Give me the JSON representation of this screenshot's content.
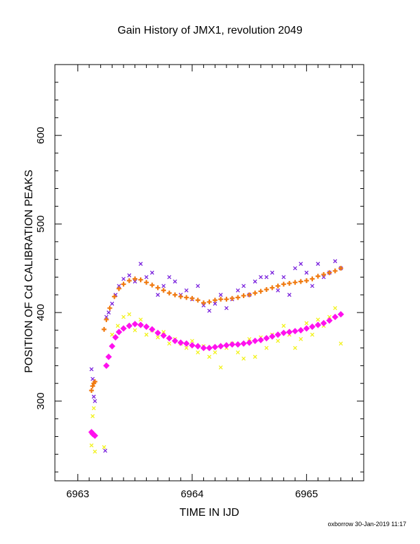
{
  "footer": "oxborrow 30-Jan-2019 11:17",
  "chart_data": {
    "type": "scatter",
    "title": "Gain History of JMX1, revolution 2049",
    "xlabel": "TIME IN IJD",
    "ylabel": "POSITION OF Cd CALIBRATION PEAKS",
    "xlim": [
      6962.8,
      6965.5
    ],
    "ylim": [
      210,
      680
    ],
    "xticks": [
      6963,
      6964,
      6965
    ],
    "yticks": [
      300,
      400,
      500,
      600
    ],
    "grid": false,
    "colors": {
      "purple": "#7a22dd",
      "orange": "#f07a10",
      "yellow": "#f2f21a",
      "magenta": "#ff11ee"
    },
    "series": [
      {
        "marker": "x",
        "color": "#7a22dd",
        "points": [
          [
            6963.12,
            336
          ],
          [
            6963.13,
            325
          ],
          [
            6963.14,
            305
          ],
          [
            6963.15,
            300
          ],
          [
            6963.24,
            244
          ],
          [
            6963.25,
            395
          ],
          [
            6963.27,
            400
          ],
          [
            6963.3,
            410
          ],
          [
            6963.33,
            420
          ],
          [
            6963.36,
            430
          ],
          [
            6963.4,
            438
          ],
          [
            6963.45,
            442
          ],
          [
            6963.5,
            435
          ],
          [
            6963.55,
            455
          ],
          [
            6963.6,
            440
          ],
          [
            6963.65,
            445
          ],
          [
            6963.7,
            420
          ],
          [
            6963.75,
            430
          ],
          [
            6963.8,
            440
          ],
          [
            6963.85,
            435
          ],
          [
            6963.9,
            420
          ],
          [
            6963.95,
            425
          ],
          [
            6964.0,
            415
          ],
          [
            6964.05,
            430
          ],
          [
            6964.1,
            408
          ],
          [
            6964.15,
            402
          ],
          [
            6964.2,
            410
          ],
          [
            6964.25,
            420
          ],
          [
            6964.3,
            405
          ],
          [
            6964.35,
            415
          ],
          [
            6964.4,
            425
          ],
          [
            6964.45,
            430
          ],
          [
            6964.5,
            420
          ],
          [
            6964.55,
            435
          ],
          [
            6964.6,
            440
          ],
          [
            6964.65,
            440
          ],
          [
            6964.7,
            445
          ],
          [
            6964.75,
            425
          ],
          [
            6964.8,
            440
          ],
          [
            6964.85,
            420
          ],
          [
            6964.9,
            450
          ],
          [
            6964.95,
            455
          ],
          [
            6965.0,
            445
          ],
          [
            6965.05,
            430
          ],
          [
            6965.1,
            455
          ],
          [
            6965.15,
            440
          ],
          [
            6965.2,
            445
          ],
          [
            6965.25,
            458
          ],
          [
            6965.3,
            450
          ]
        ]
      },
      {
        "marker": "plus",
        "color": "#f07a10",
        "points": [
          [
            6963.12,
            312
          ],
          [
            6963.13,
            317
          ],
          [
            6963.14,
            320
          ],
          [
            6963.15,
            322
          ],
          [
            6963.23,
            381
          ],
          [
            6963.25,
            392
          ],
          [
            6963.28,
            405
          ],
          [
            6963.32,
            418
          ],
          [
            6963.36,
            427
          ],
          [
            6963.4,
            432
          ],
          [
            6963.45,
            436
          ],
          [
            6963.5,
            438
          ],
          [
            6963.55,
            437
          ],
          [
            6963.6,
            434
          ],
          [
            6963.65,
            431
          ],
          [
            6963.7,
            428
          ],
          [
            6963.75,
            425
          ],
          [
            6963.8,
            422
          ],
          [
            6963.85,
            420
          ],
          [
            6963.9,
            418
          ],
          [
            6963.95,
            417
          ],
          [
            6964.0,
            416
          ],
          [
            6964.05,
            414
          ],
          [
            6964.1,
            411
          ],
          [
            6964.15,
            412
          ],
          [
            6964.2,
            414
          ],
          [
            6964.25,
            415
          ],
          [
            6964.3,
            415
          ],
          [
            6964.35,
            416
          ],
          [
            6964.4,
            417
          ],
          [
            6964.45,
            419
          ],
          [
            6964.5,
            420
          ],
          [
            6964.55,
            422
          ],
          [
            6964.6,
            424
          ],
          [
            6964.65,
            426
          ],
          [
            6964.7,
            428
          ],
          [
            6964.75,
            430
          ],
          [
            6964.8,
            432
          ],
          [
            6964.85,
            433
          ],
          [
            6964.9,
            434
          ],
          [
            6964.95,
            435
          ],
          [
            6965.0,
            436
          ],
          [
            6965.05,
            438
          ],
          [
            6965.1,
            441
          ],
          [
            6965.15,
            443
          ],
          [
            6965.2,
            445
          ],
          [
            6965.25,
            447
          ],
          [
            6965.3,
            450
          ]
        ]
      },
      {
        "marker": "x",
        "color": "#f2f21a",
        "points": [
          [
            6963.12,
            250
          ],
          [
            6963.13,
            283
          ],
          [
            6963.14,
            292
          ],
          [
            6963.15,
            243
          ],
          [
            6963.23,
            248
          ],
          [
            6963.3,
            375
          ],
          [
            6963.35,
            385
          ],
          [
            6963.4,
            395
          ],
          [
            6963.45,
            398
          ],
          [
            6963.5,
            380
          ],
          [
            6963.55,
            392
          ],
          [
            6963.6,
            375
          ],
          [
            6963.65,
            380
          ],
          [
            6963.7,
            372
          ],
          [
            6963.75,
            378
          ],
          [
            6963.8,
            365
          ],
          [
            6963.85,
            370
          ],
          [
            6963.9,
            365
          ],
          [
            6963.95,
            360
          ],
          [
            6964.0,
            368
          ],
          [
            6964.05,
            355
          ],
          [
            6964.1,
            362
          ],
          [
            6964.15,
            350
          ],
          [
            6964.2,
            355
          ],
          [
            6964.25,
            338
          ],
          [
            6964.3,
            360
          ],
          [
            6964.35,
            365
          ],
          [
            6964.4,
            355
          ],
          [
            6964.45,
            348
          ],
          [
            6964.5,
            370
          ],
          [
            6964.55,
            350
          ],
          [
            6964.6,
            372
          ],
          [
            6964.65,
            360
          ],
          [
            6964.7,
            375
          ],
          [
            6964.75,
            368
          ],
          [
            6964.8,
            385
          ],
          [
            6964.85,
            375
          ],
          [
            6964.9,
            360
          ],
          [
            6964.95,
            370
          ],
          [
            6965.0,
            388
          ],
          [
            6965.05,
            375
          ],
          [
            6965.1,
            392
          ],
          [
            6965.15,
            385
          ],
          [
            6965.2,
            395
          ],
          [
            6965.25,
            405
          ],
          [
            6965.3,
            365
          ]
        ]
      },
      {
        "marker": "diamond",
        "color": "#ff11ee",
        "points": [
          [
            6963.12,
            265
          ],
          [
            6963.13,
            263
          ],
          [
            6963.14,
            262
          ],
          [
            6963.15,
            261
          ],
          [
            6963.25,
            340
          ],
          [
            6963.27,
            350
          ],
          [
            6963.3,
            362
          ],
          [
            6963.33,
            372
          ],
          [
            6963.36,
            378
          ],
          [
            6963.4,
            382
          ],
          [
            6963.45,
            385
          ],
          [
            6963.5,
            387
          ],
          [
            6963.55,
            386
          ],
          [
            6963.6,
            384
          ],
          [
            6963.65,
            381
          ],
          [
            6963.7,
            377
          ],
          [
            6963.75,
            374
          ],
          [
            6963.8,
            371
          ],
          [
            6963.85,
            368
          ],
          [
            6963.9,
            366
          ],
          [
            6963.95,
            365
          ],
          [
            6964.0,
            363
          ],
          [
            6964.05,
            362
          ],
          [
            6964.1,
            360
          ],
          [
            6964.15,
            360
          ],
          [
            6964.2,
            361
          ],
          [
            6964.25,
            362
          ],
          [
            6964.3,
            363
          ],
          [
            6964.35,
            364
          ],
          [
            6964.4,
            364
          ],
          [
            6964.45,
            365
          ],
          [
            6964.5,
            366
          ],
          [
            6964.55,
            368
          ],
          [
            6964.6,
            369
          ],
          [
            6964.65,
            371
          ],
          [
            6964.7,
            373
          ],
          [
            6964.75,
            375
          ],
          [
            6964.8,
            377
          ],
          [
            6964.85,
            378
          ],
          [
            6964.9,
            379
          ],
          [
            6964.95,
            380
          ],
          [
            6965.0,
            382
          ],
          [
            6965.05,
            384
          ],
          [
            6965.1,
            386
          ],
          [
            6965.15,
            388
          ],
          [
            6965.2,
            391
          ],
          [
            6965.25,
            395
          ],
          [
            6965.3,
            398
          ]
        ]
      }
    ]
  }
}
